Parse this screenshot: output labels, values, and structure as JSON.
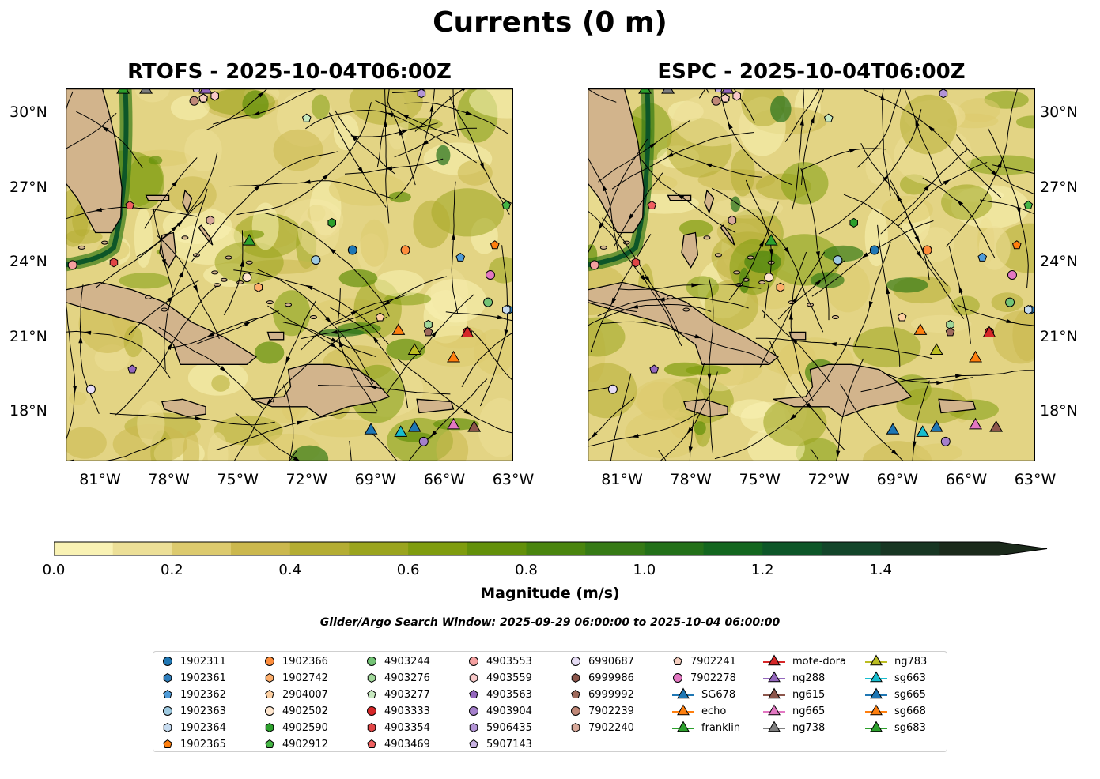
{
  "figure": {
    "title": "Currents (0 m)",
    "panels": [
      {
        "id": "rtofs",
        "title": "RTOFS - 2025-10-04T06:00Z"
      },
      {
        "id": "espc",
        "title": "ESPC - 2025-10-04T06:00Z"
      }
    ],
    "lat_labels": [
      "30°N",
      "27°N",
      "24°N",
      "21°N",
      "18°N"
    ],
    "lon_labels": [
      "81°W",
      "78°W",
      "75°W",
      "72°W",
      "69°W",
      "66°W",
      "63°W"
    ],
    "colorbar": {
      "label": "Magnitude (m/s)",
      "ticks": [
        "0.0",
        "0.2",
        "0.4",
        "0.6",
        "0.8",
        "1.0",
        "1.2",
        "1.4"
      ],
      "colors": [
        "#f9f2b4",
        "#ecdf97",
        "#dcca6e",
        "#cbb84e",
        "#b4ad33",
        "#9aa41e",
        "#7f9c0e",
        "#63900a",
        "#4a850e",
        "#367a16",
        "#237019",
        "#13661f",
        "#0d5628",
        "#13452a",
        "#183623",
        "#1b2a1b"
      ],
      "extend_color": "#1b2a1b"
    },
    "search_window": "Glider/Argo Search Window: 2025-09-29 06:00:00 to 2025-10-04 06:00:00"
  },
  "map_data": {
    "extent": {
      "lon": [
        -82.5,
        -63
      ],
      "lat": [
        16,
        31
      ]
    },
    "land_color": "#d2b48c",
    "ocean_base_color": "#e3d484",
    "markers": [
      {
        "name": "1902311",
        "kind": "argo",
        "shape": "circle",
        "color": "#1f77b4",
        "lon": -70.0,
        "lat": 24.5
      },
      {
        "name": "1902361",
        "kind": "argo",
        "shape": "hexagon",
        "color": "#2e7ebc",
        "lon": -63.2,
        "lat": 22.1
      },
      {
        "name": "1902362",
        "kind": "argo",
        "shape": "pentagon",
        "color": "#4f9bd8",
        "lon": -65.3,
        "lat": 24.2
      },
      {
        "name": "1902363",
        "kind": "argo",
        "shape": "circle",
        "color": "#9ecae1",
        "lon": -71.6,
        "lat": 24.1
      },
      {
        "name": "1902364",
        "kind": "argo",
        "shape": "hexagon",
        "color": "#c6dbef",
        "lon": -63.3,
        "lat": 22.1
      },
      {
        "name": "1902365",
        "kind": "argo",
        "shape": "pentagon",
        "color": "#ff7f0e",
        "lon": -63.8,
        "lat": 24.7
      },
      {
        "name": "1902366",
        "kind": "argo",
        "shape": "circle",
        "color": "#fd8d3c",
        "lon": -67.7,
        "lat": 24.5
      },
      {
        "name": "1902742",
        "kind": "argo",
        "shape": "hexagon",
        "color": "#fdae6b",
        "lon": -74.1,
        "lat": 23.0
      },
      {
        "name": "2904007",
        "kind": "argo",
        "shape": "pentagon",
        "color": "#fdd0a2",
        "lon": -68.8,
        "lat": 21.8
      },
      {
        "name": "4902502",
        "kind": "argo",
        "shape": "circle",
        "color": "#fee6ce",
        "lon": -74.6,
        "lat": 23.4
      },
      {
        "name": "4902590",
        "kind": "argo",
        "shape": "hexagon",
        "color": "#2ca02c",
        "lon": -70.9,
        "lat": 25.6
      },
      {
        "name": "4902912",
        "kind": "argo",
        "shape": "pentagon",
        "color": "#45b545",
        "lon": -63.3,
        "lat": 26.3
      },
      {
        "name": "4903244",
        "kind": "argo",
        "shape": "circle",
        "color": "#74c476",
        "lon": -64.1,
        "lat": 22.4
      },
      {
        "name": "4903276",
        "kind": "argo",
        "shape": "hexagon",
        "color": "#a1d99b",
        "lon": -66.7,
        "lat": 21.5
      },
      {
        "name": "4903277",
        "kind": "argo",
        "shape": "pentagon",
        "color": "#c7e9c0",
        "lon": -72.0,
        "lat": 29.8
      },
      {
        "name": "4903333",
        "kind": "argo",
        "shape": "circle",
        "color": "#d62728",
        "lon": -65.0,
        "lat": 21.2
      },
      {
        "name": "4903354",
        "kind": "argo",
        "shape": "hexagon",
        "color": "#e04546",
        "lon": -80.4,
        "lat": 24.0
      },
      {
        "name": "4903469",
        "kind": "argo",
        "shape": "pentagon",
        "color": "#ef6060",
        "lon": -79.7,
        "lat": 26.3
      },
      {
        "name": "4903553",
        "kind": "argo",
        "shape": "circle",
        "color": "#f4a0a0",
        "lon": -82.2,
        "lat": 23.9
      },
      {
        "name": "4903559",
        "kind": "argo",
        "shape": "hexagon",
        "color": "#f9c9c9",
        "lon": -76.0,
        "lat": 30.7
      },
      {
        "name": "4903563",
        "kind": "argo",
        "shape": "pentagon",
        "color": "#9467bd",
        "lon": -79.6,
        "lat": 19.7
      },
      {
        "name": "4903904",
        "kind": "argo",
        "shape": "circle",
        "color": "#a47fcb",
        "lon": -66.9,
        "lat": 16.8
      },
      {
        "name": "5906435",
        "kind": "argo",
        "shape": "hexagon",
        "color": "#b394d6",
        "lon": -67.0,
        "lat": 30.8
      },
      {
        "name": "5907143",
        "kind": "argo",
        "shape": "pentagon",
        "color": "#c9b3e3",
        "lon": -76.8,
        "lat": 31.0
      },
      {
        "name": "6990687",
        "kind": "argo",
        "shape": "circle",
        "color": "#e6dcf5",
        "lon": -81.4,
        "lat": 18.9
      },
      {
        "name": "6999986",
        "kind": "argo",
        "shape": "hexagon",
        "color": "#8c564b",
        "lon": -76.5,
        "lat": 30.6
      },
      {
        "name": "6999992",
        "kind": "argo",
        "shape": "pentagon",
        "color": "#9e6a5c",
        "lon": -66.7,
        "lat": 21.2
      },
      {
        "name": "7902239",
        "kind": "argo",
        "shape": "circle",
        "color": "#c08878",
        "lon": -76.9,
        "lat": 30.5
      },
      {
        "name": "7902240",
        "kind": "argo",
        "shape": "hexagon",
        "color": "#d8a99a",
        "lon": -76.2,
        "lat": 25.7
      },
      {
        "name": "7902241",
        "kind": "argo",
        "shape": "pentagon",
        "color": "#f6cfc0",
        "lon": -76.5,
        "lat": 30.6
      },
      {
        "name": "7902278",
        "kind": "argo",
        "shape": "circle",
        "color": "#e377c2",
        "lon": -64.0,
        "lat": 23.5
      },
      {
        "name": "SG678",
        "kind": "glider",
        "shape": "triangle",
        "color": "#1f77b4",
        "lon": -67.3,
        "lat": 17.4
      },
      {
        "name": "echo",
        "kind": "glider",
        "shape": "triangle",
        "color": "#ff7f0e",
        "lon": -65.6,
        "lat": 20.2
      },
      {
        "name": "franklin",
        "kind": "glider",
        "shape": "triangle",
        "color": "#2ca02c",
        "lon": -74.5,
        "lat": 24.9
      },
      {
        "name": "mote-dora",
        "kind": "glider",
        "shape": "triangle",
        "color": "#d62728",
        "lon": -65.0,
        "lat": 21.2
      },
      {
        "name": "ng288",
        "kind": "glider",
        "shape": "triangle",
        "color": "#9467bd",
        "lon": -76.4,
        "lat": 31.0
      },
      {
        "name": "ng615",
        "kind": "glider",
        "shape": "triangle",
        "color": "#8c564b",
        "lon": -64.7,
        "lat": 17.4
      },
      {
        "name": "ng665",
        "kind": "glider",
        "shape": "triangle",
        "color": "#e377c2",
        "lon": -65.6,
        "lat": 17.5
      },
      {
        "name": "ng738",
        "kind": "glider",
        "shape": "triangle",
        "color": "#7f7f7f",
        "lon": -79.0,
        "lat": 31.0
      },
      {
        "name": "ng783",
        "kind": "glider",
        "shape": "triangle",
        "color": "#bcbd22",
        "lon": -67.3,
        "lat": 20.5
      },
      {
        "name": "sg663",
        "kind": "glider",
        "shape": "triangle",
        "color": "#17becf",
        "lon": -67.9,
        "lat": 17.2
      },
      {
        "name": "sg665",
        "kind": "glider",
        "shape": "triangle",
        "color": "#1f77b4",
        "lon": -69.2,
        "lat": 17.3
      },
      {
        "name": "sg668",
        "kind": "glider",
        "shape": "triangle",
        "color": "#ff7f0e",
        "lon": -68.0,
        "lat": 21.3
      },
      {
        "name": "sg683",
        "kind": "glider",
        "shape": "triangle",
        "color": "#2ca02c",
        "lon": -80.0,
        "lat": 31.0
      }
    ]
  }
}
